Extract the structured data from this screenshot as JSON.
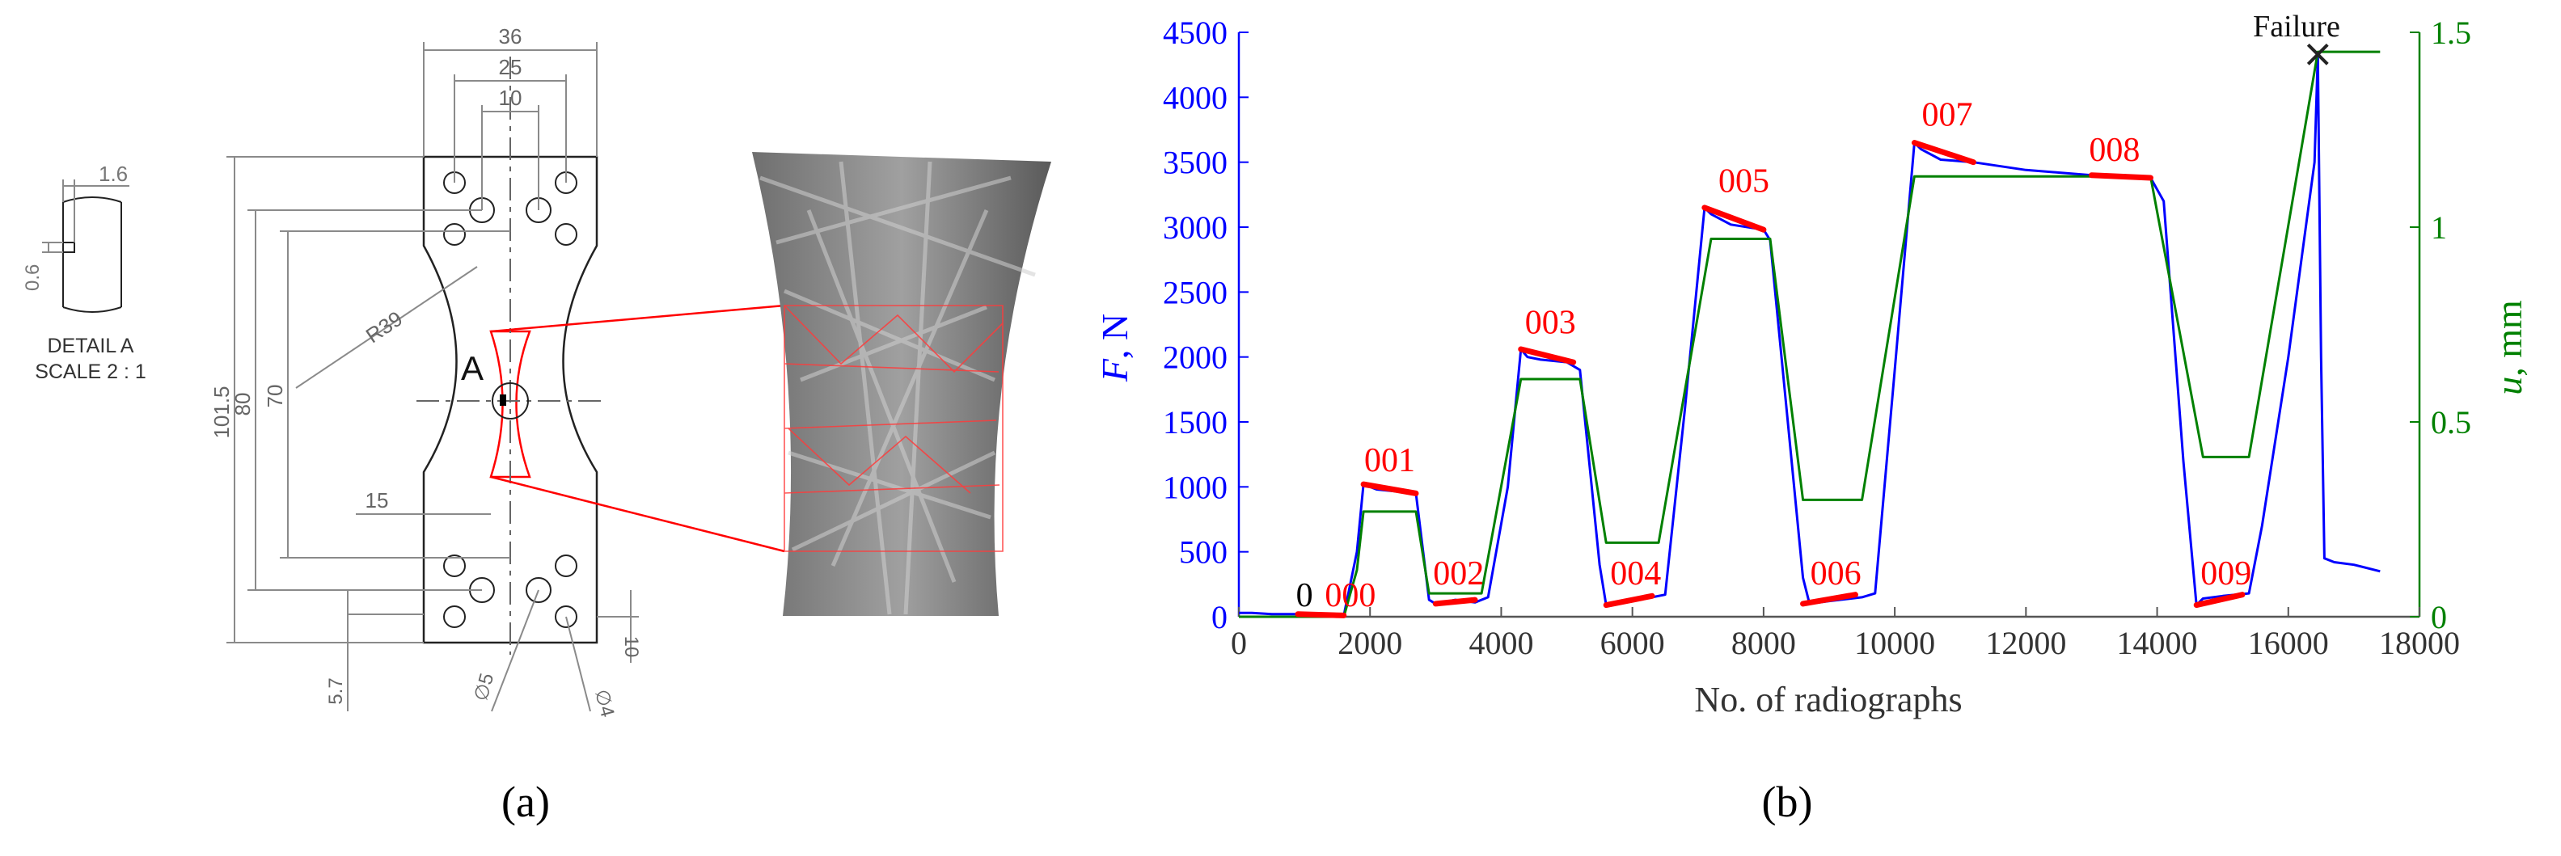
{
  "panel_a": {
    "caption": "(a)",
    "detail": {
      "dim_width": "1.6",
      "dim_depth": "0.6",
      "title": "DETAIL A",
      "scale": "SCALE 2 : 1"
    },
    "dims": {
      "w36": "36",
      "w25": "25",
      "w10": "10",
      "h101": "101.5",
      "h80": "80",
      "h70": "70",
      "r39": "R39",
      "w15": "15",
      "h57": "5.7",
      "h10": "10",
      "d5": "∅5",
      "d4": "∅4",
      "detail_mark": "A"
    }
  },
  "panel_b": {
    "caption": "(b)",
    "failure_label": "Failure",
    "chart_data": {
      "type": "line",
      "xlabel": "No. of radiographs",
      "ylabel_left": {
        "italic": "F",
        "rest": ", N"
      },
      "ylabel_right": {
        "italic": "u",
        "rest": ", mm"
      },
      "xlim": [
        0,
        18000
      ],
      "ylim_left": [
        0,
        4500
      ],
      "ylim_right": [
        0,
        1.5
      ],
      "xticks": [
        "0",
        "2000",
        "4000",
        "6000",
        "8000",
        "10000",
        "12000",
        "14000",
        "16000",
        "18000"
      ],
      "yticks_left": [
        "0",
        "500",
        "1000",
        "1500",
        "2000",
        "2500",
        "3000",
        "3500",
        "4000",
        "4500"
      ],
      "yticks_right": [
        "0",
        "0.5",
        "1",
        "1.5"
      ],
      "colors": {
        "force": "#0000ff",
        "displacement": "#008000",
        "scan": "#ff0000",
        "left_axis": "#0000ff",
        "right_axis": "#008000",
        "label_zero": "#000000"
      },
      "series": [
        {
          "key": "force",
          "axis": "left",
          "x": [
            0,
            200,
            500,
            900,
            1200,
            1600,
            1800,
            1900,
            2100,
            2500,
            2700,
            2900,
            3000,
            3300,
            3600,
            3800,
            4100,
            4300,
            4400,
            4600,
            5000,
            5200,
            5500,
            5600,
            5900,
            6300,
            6500,
            6800,
            7100,
            7200,
            7500,
            8000,
            8100,
            8600,
            8700,
            9000,
            9500,
            9700,
            10000,
            10300,
            10400,
            10700,
            11200,
            12000,
            12500,
            13000,
            13500,
            13900,
            14100,
            14400,
            14600,
            14700,
            15000,
            15400,
            15600,
            16000,
            16400,
            16450,
            16500,
            16550,
            16700,
            17000,
            17400
          ],
          "y": [
            30,
            30,
            20,
            20,
            10,
            10,
            500,
            1020,
            980,
            960,
            950,
            130,
            100,
            130,
            110,
            150,
            1000,
            2060,
            2000,
            1980,
            1960,
            1900,
            400,
            90,
            130,
            150,
            170,
            1600,
            3150,
            3100,
            3020,
            2980,
            2900,
            300,
            100,
            120,
            150,
            180,
            1900,
            3650,
            3600,
            3520,
            3500,
            3440,
            3420,
            3400,
            3400,
            3380,
            3200,
            1200,
            90,
            140,
            160,
            180,
            700,
            2000,
            3500,
            4330,
            2000,
            450,
            420,
            400,
            350
          ]
        },
        {
          "key": "displacement",
          "axis": "right",
          "x": [
            0,
            1600,
            1800,
            1900,
            2700,
            2900,
            3700,
            4300,
            5200,
            5600,
            6400,
            7200,
            8100,
            8600,
            9500,
            10300,
            13900,
            14700,
            15400,
            16450,
            17400
          ],
          "y": [
            0,
            0,
            0.12,
            0.27,
            0.27,
            0.06,
            0.06,
            0.61,
            0.61,
            0.19,
            0.19,
            0.97,
            0.97,
            0.3,
            0.3,
            1.13,
            1.13,
            0.41,
            0.41,
            1.45,
            1.45
          ]
        }
      ],
      "scan_segments": [
        {
          "label": "000",
          "x": [
            900,
            1600
          ],
          "y": [
            20,
            10
          ]
        },
        {
          "label": "001",
          "x": [
            1900,
            2700
          ],
          "y": [
            1020,
            950
          ]
        },
        {
          "label": "002",
          "x": [
            3000,
            3600
          ],
          "y": [
            100,
            130
          ]
        },
        {
          "label": "003",
          "x": [
            4300,
            5100
          ],
          "y": [
            2060,
            1960
          ]
        },
        {
          "label": "004",
          "x": [
            5600,
            6300
          ],
          "y": [
            90,
            160
          ]
        },
        {
          "label": "005",
          "x": [
            7100,
            8000
          ],
          "y": [
            3150,
            2980
          ]
        },
        {
          "label": "006",
          "x": [
            8600,
            9400
          ],
          "y": [
            100,
            170
          ]
        },
        {
          "label": "007",
          "x": [
            10300,
            11200
          ],
          "y": [
            3650,
            3500
          ]
        },
        {
          "label": "008",
          "x": [
            13000,
            13900
          ],
          "y": [
            3400,
            3380
          ]
        },
        {
          "label": "009",
          "x": [
            14600,
            15300
          ],
          "y": [
            90,
            170
          ]
        }
      ],
      "annotations": [
        {
          "text": "0",
          "x": 1000,
          "y": 80,
          "color": "label_zero"
        },
        {
          "text": "000",
          "x": 1700,
          "y": 80,
          "color": "scan"
        },
        {
          "text": "001",
          "x": 2300,
          "y": 1120,
          "color": "scan"
        },
        {
          "text": "002",
          "x": 3350,
          "y": 250,
          "color": "scan"
        },
        {
          "text": "003",
          "x": 4750,
          "y": 2180,
          "color": "scan"
        },
        {
          "text": "004",
          "x": 6050,
          "y": 250,
          "color": "scan"
        },
        {
          "text": "005",
          "x": 7700,
          "y": 3270,
          "color": "scan"
        },
        {
          "text": "006",
          "x": 9100,
          "y": 250,
          "color": "scan"
        },
        {
          "text": "007",
          "x": 10800,
          "y": 3780,
          "color": "scan"
        },
        {
          "text": "008",
          "x": 13350,
          "y": 3510,
          "color": "scan"
        },
        {
          "text": "009",
          "x": 15050,
          "y": 250,
          "color": "scan"
        }
      ],
      "failure_point": {
        "x": 16450,
        "y": 4330
      }
    }
  }
}
